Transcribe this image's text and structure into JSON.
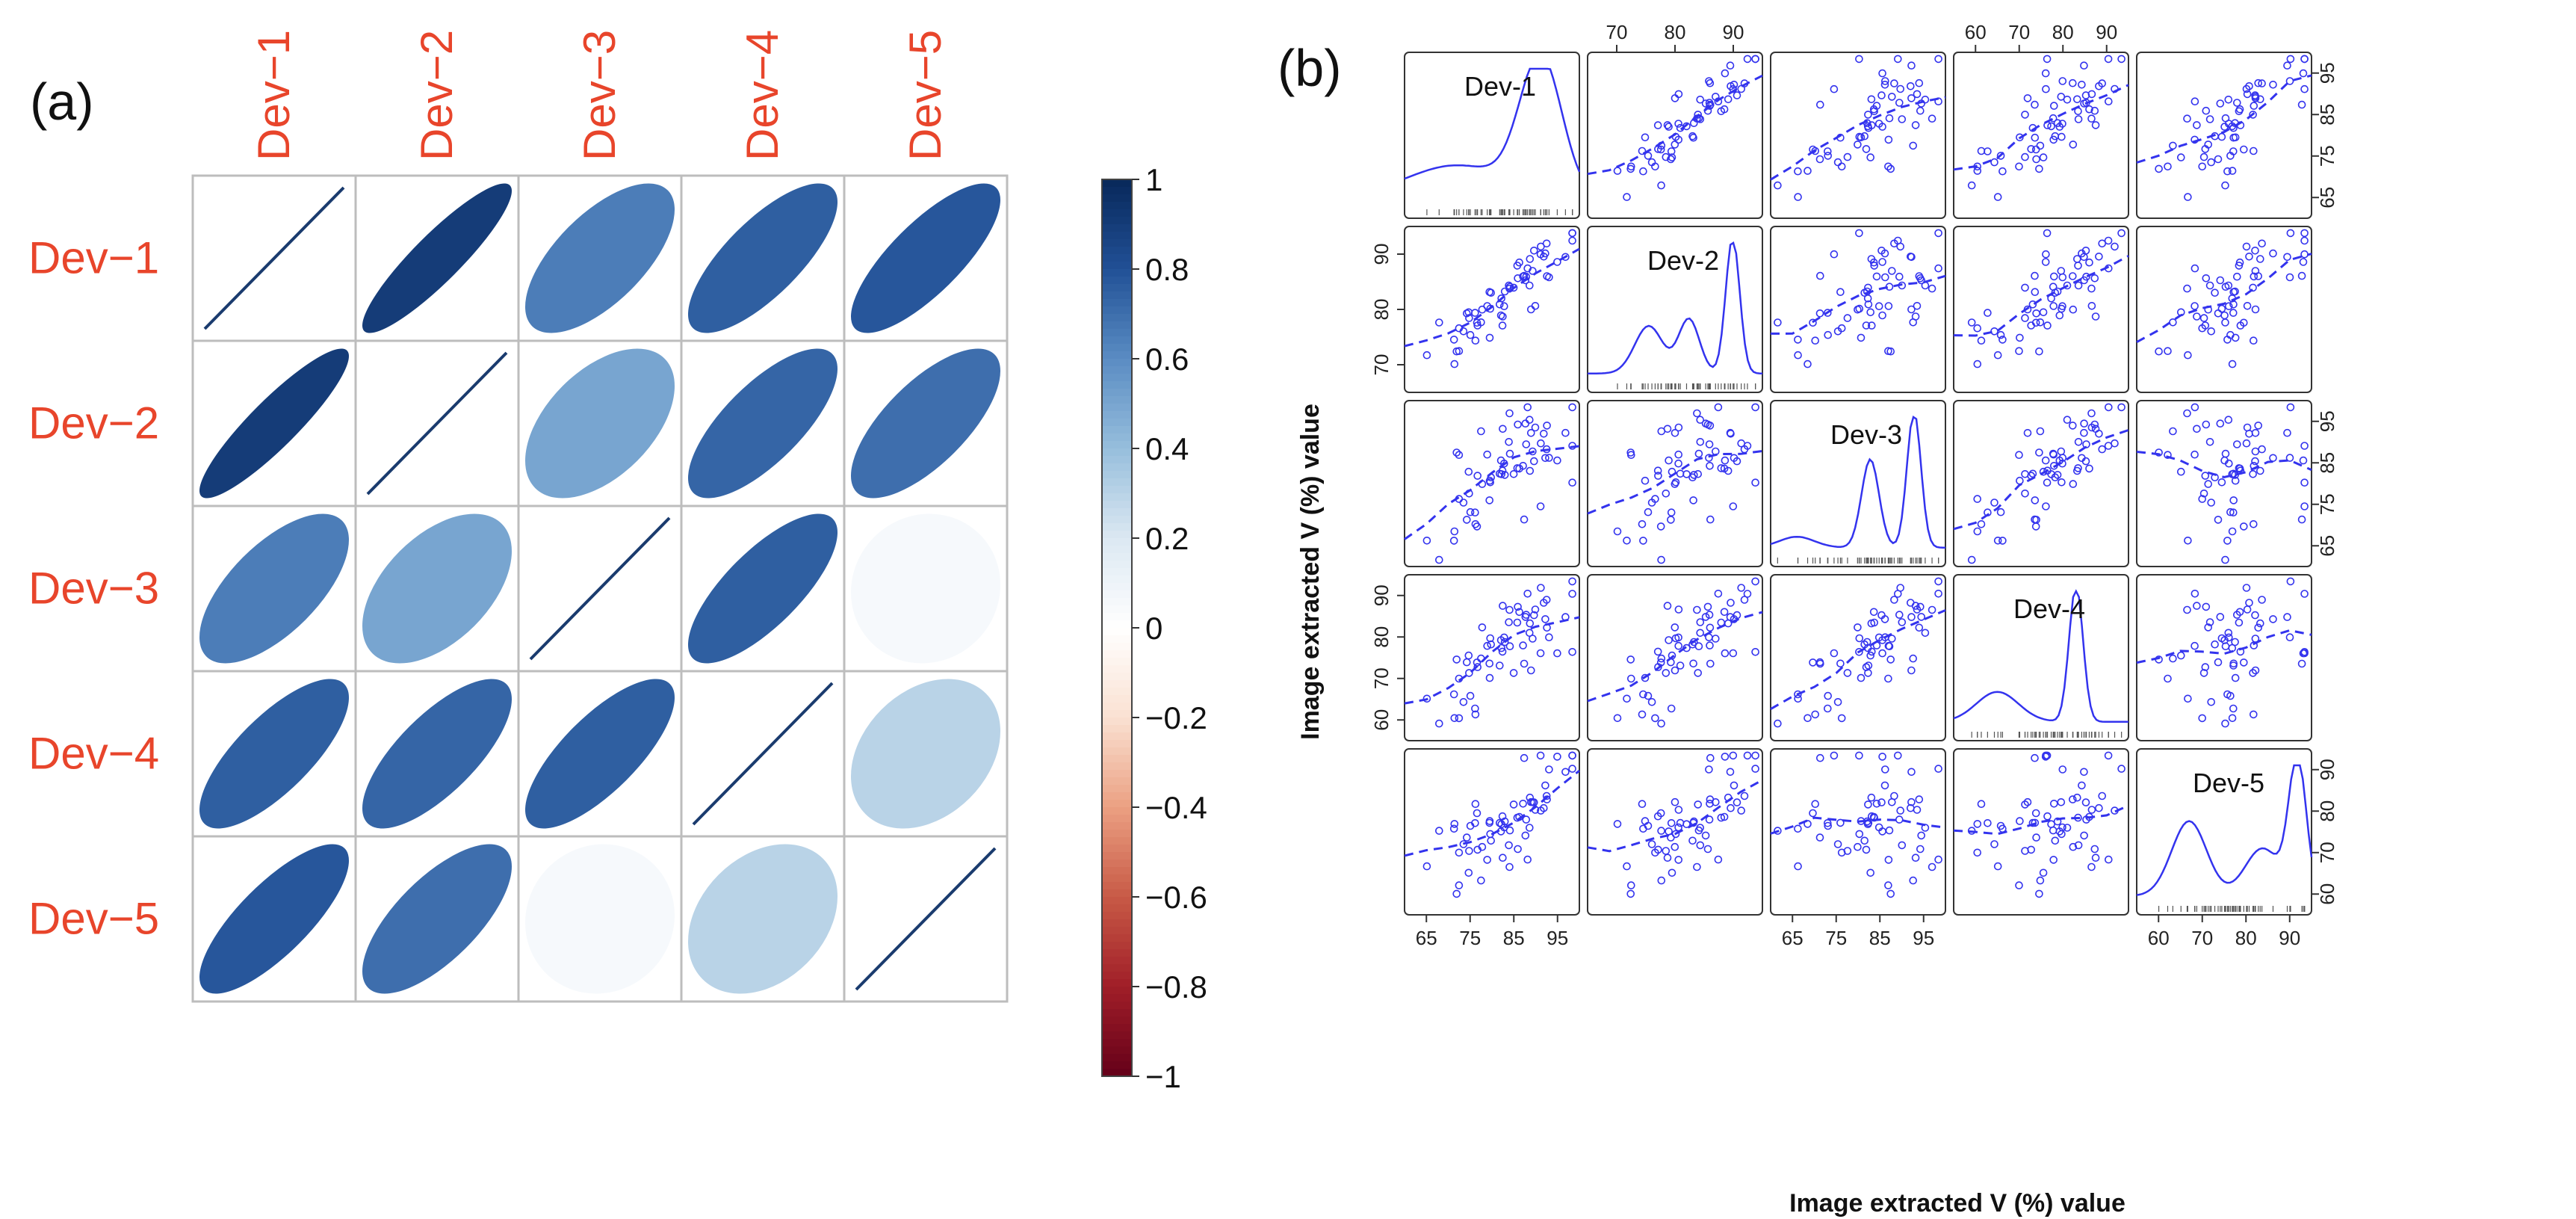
{
  "panel_labels": {
    "a": "(a)",
    "b": "(b)"
  },
  "colors": {
    "label_red": "#e8452b",
    "grid_line": "#bdbdbd",
    "diag_line": "#1a3b6e",
    "scatter_blue": "#3333ee"
  },
  "chart_data": [
    {
      "type": "heatmap",
      "subtype": "correlation-ellipse",
      "variables": [
        "Dev−1",
        "Dev−2",
        "Dev−3",
        "Dev−4",
        "Dev−5"
      ],
      "matrix": [
        [
          1.0,
          0.9,
          0.65,
          0.75,
          0.78
        ],
        [
          0.9,
          1.0,
          0.5,
          0.73,
          0.7
        ],
        [
          0.65,
          0.5,
          1.0,
          0.75,
          0.05
        ],
        [
          0.75,
          0.73,
          0.75,
          1.0,
          0.3
        ],
        [
          0.78,
          0.7,
          0.05,
          0.3,
          1.0
        ]
      ],
      "colorbar": {
        "range": [
          -1,
          1
        ],
        "ticks": [
          "1",
          "0.8",
          "0.6",
          "0.4",
          "0.2",
          "0",
          "−0.2",
          "−0.4",
          "−0.6",
          "−0.8",
          "−1"
        ]
      }
    },
    {
      "type": "scatter",
      "subtype": "scatterplot-matrix",
      "variables": [
        "Dev-1",
        "Dev-2",
        "Dev-3",
        "Dev-4",
        "Dev-5"
      ],
      "xlabel": "Image extracted V (%) value",
      "ylabel": "Image extracted V (%) value",
      "ranges": [
        [
          65,
          98
        ],
        [
          62,
          98
        ],
        [
          62,
          96
        ],
        [
          55,
          97
        ],
        [
          56,
          95
        ]
      ],
      "top_ticks": [
        {
          "panel": 2,
          "labels": [
            "70",
            "80",
            "90"
          ]
        },
        {
          "panel": 4,
          "labels": [
            "60",
            "70",
            "80",
            "90"
          ]
        }
      ],
      "right_ticks": [
        {
          "panel": 1,
          "labels": [
            "65",
            "75",
            "85",
            "95"
          ]
        },
        {
          "panel": 3,
          "labels": [
            "65",
            "75",
            "85",
            "95"
          ]
        },
        {
          "panel": 5,
          "labels": [
            "60",
            "70",
            "80",
            "90"
          ]
        }
      ],
      "bottom_ticks": [
        {
          "panel": 1,
          "labels": [
            "65",
            "75",
            "85",
            "95"
          ]
        },
        {
          "panel": 3,
          "labels": [
            "65",
            "75",
            "85",
            "95"
          ]
        },
        {
          "panel": 5,
          "labels": [
            "60",
            "70",
            "80",
            "90"
          ]
        }
      ],
      "left_ticks": [
        {
          "panel": 2,
          "labels": [
            "70",
            "80",
            "90"
          ]
        },
        {
          "panel": 4,
          "labels": [
            "60",
            "70",
            "80",
            "90"
          ]
        }
      ]
    }
  ]
}
